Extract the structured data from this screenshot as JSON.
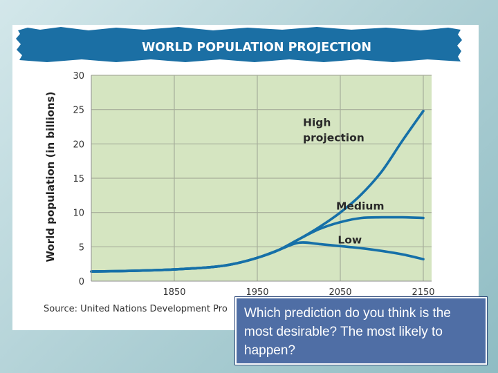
{
  "chart_data": {
    "type": "line",
    "title": "WORLD POPULATION PROJECTION",
    "ylabel": "World population (in billions)",
    "xlabel": "",
    "xlim": [
      1750,
      2160
    ],
    "ylim": [
      0,
      30
    ],
    "x_ticks": [
      "1850",
      "1950",
      "2050",
      "2150"
    ],
    "y_ticks": [
      "0",
      "5",
      "10",
      "15",
      "20",
      "25",
      "30"
    ],
    "grid": true,
    "series": [
      {
        "name": "High\nprojection",
        "label_lines": [
          "High",
          "projection"
        ],
        "x": [
          1750,
          1800,
          1850,
          1900,
          1925,
          1950,
          1975,
          2000,
          2025,
          2050,
          2075,
          2100,
          2125,
          2150
        ],
        "values": [
          1.4,
          1.5,
          1.7,
          2.1,
          2.6,
          3.4,
          4.5,
          6.1,
          7.9,
          10.0,
          12.6,
          16.0,
          20.5,
          24.8
        ]
      },
      {
        "name": "Medium",
        "label_lines": [
          "Medium"
        ],
        "x": [
          1750,
          1800,
          1850,
          1900,
          1925,
          1950,
          1975,
          2000,
          2025,
          2050,
          2075,
          2100,
          2125,
          2150
        ],
        "values": [
          1.4,
          1.5,
          1.7,
          2.1,
          2.6,
          3.4,
          4.5,
          6.1,
          7.6,
          8.6,
          9.2,
          9.3,
          9.3,
          9.2
        ]
      },
      {
        "name": "Low",
        "label_lines": [
          "Low"
        ],
        "x": [
          1750,
          1800,
          1850,
          1900,
          1925,
          1950,
          1975,
          2000,
          2025,
          2050,
          2075,
          2100,
          2125,
          2150
        ],
        "values": [
          1.4,
          1.5,
          1.7,
          2.1,
          2.6,
          3.4,
          4.5,
          5.6,
          5.4,
          5.1,
          4.8,
          4.4,
          3.9,
          3.2
        ]
      }
    ],
    "source": "Source: United Nations Development Pro",
    "colors": {
      "line": "#1670a8",
      "plot_bg": "#d5e5c1",
      "grid": "#a6ad9a",
      "banner": "#1b6fa4",
      "banner_text": "#ffffff"
    }
  },
  "question": {
    "text": "Which prediction do you think is the most desirable? The most likely to happen?",
    "colors": {
      "bg": "#4f6ea5",
      "text": "#ffffff"
    }
  }
}
